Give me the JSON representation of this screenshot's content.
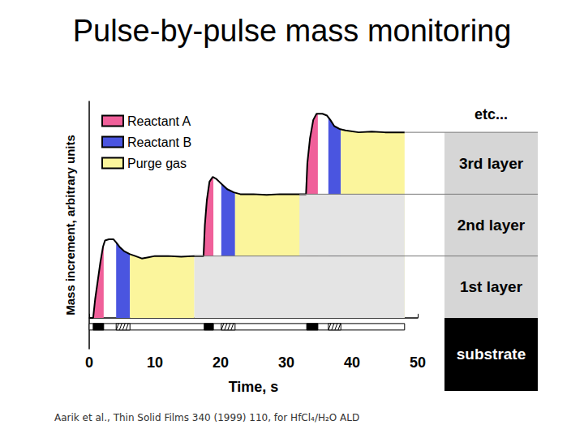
{
  "title": "Pulse-by-pulse mass monitoring",
  "citation": "Aarik et al., Thin Solid Films 340 (1999) 110, for HfCl₄/H₂O ALD",
  "chart_data": {
    "type": "line",
    "x_label": "Time, s",
    "y_label": "Mass increment, arbitrary units",
    "color": "#000000",
    "x": [
      0,
      0.6,
      0.9,
      1.3,
      1.7,
      2.1,
      2.4,
      3.0,
      3.7,
      4.1,
      4.6,
      5.3,
      6.2,
      7,
      8,
      9,
      10,
      12,
      14,
      16,
      17.4,
      17.6,
      17.9,
      18.3,
      18.8,
      19.3,
      19.8,
      20.3,
      21,
      22,
      23,
      25,
      27,
      29,
      31,
      33,
      33.2,
      33.6,
      34.1,
      34.6,
      35.5,
      36.2,
      36.7,
      37.3,
      38.2,
      39,
      41,
      43,
      45,
      48
    ],
    "values": [
      0,
      0,
      0.3,
      0.6,
      0.9,
      1.15,
      1.25,
      1.27,
      1.27,
      1.22,
      1.15,
      1.08,
      1.03,
      1.0,
      0.96,
      0.98,
      1.0,
      1.0,
      0.99,
      1.0,
      1.0,
      1.5,
      1.9,
      2.2,
      2.28,
      2.25,
      2.2,
      2.15,
      2.08,
      2.03,
      2.0,
      2.0,
      1.99,
      2.0,
      2.0,
      2.0,
      2.5,
      2.9,
      3.2,
      3.3,
      3.3,
      3.27,
      3.2,
      3.1,
      3.05,
      3.03,
      3.0,
      3.01,
      3.0,
      3.0
    ],
    "xlim": [
      0,
      50
    ],
    "xticks": [
      0,
      10,
      20,
      30,
      40,
      50
    ],
    "ylim": [
      -0.5,
      3.5
    ],
    "tick_labels": "x",
    "grid": false,
    "legend": "upper left",
    "pulses": [
      {
        "name": "Reactant A",
        "color": "#f0609a",
        "intervals": [
          [
            0.6,
            2.2
          ],
          [
            17.5,
            18.9
          ],
          [
            33.1,
            34.8
          ]
        ]
      },
      {
        "name": "Reactant B",
        "color": "#4a55e0",
        "intervals": [
          [
            4.1,
            6.2
          ],
          [
            20.1,
            22.2
          ],
          [
            36.4,
            38.3
          ]
        ]
      },
      {
        "name": "Purge gas",
        "color": "#fbf59c",
        "intervals": [
          [
            6.2,
            16.0
          ],
          [
            22.2,
            32.1
          ],
          [
            38.3,
            48.0
          ]
        ]
      }
    ],
    "substrate": {
      "label": "substrate",
      "value": 0
    },
    "layers": [
      {
        "label": "1st layer",
        "value": 1,
        "from": 16
      },
      {
        "label": "2nd layer",
        "value": 2,
        "from": 32
      },
      {
        "label": "3rd layer",
        "value": 3,
        "from": 48
      }
    ],
    "more_layers": "etc..."
  }
}
